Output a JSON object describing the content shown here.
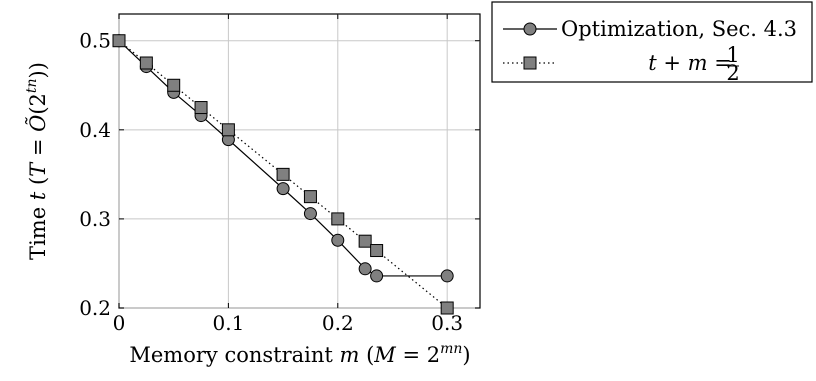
{
  "chart_data": {
    "type": "line",
    "xlabel": "Memory constraint m (M = 2^mn)",
    "ylabel": "Time t (T = Õ(2^tn))",
    "xlim": [
      0,
      0.33
    ],
    "ylim": [
      0.2,
      0.53
    ],
    "xticks": [
      "0",
      "0.1",
      "0.2",
      "0.3"
    ],
    "yticks": [
      "0.2",
      "0.3",
      "0.4",
      "0.5"
    ],
    "grid": true,
    "legend_position": "top-right-outside",
    "series": [
      {
        "name": "Optimization, Sec. 4.3",
        "marker": "circle",
        "line_style": "solid",
        "color": "#808080",
        "points": [
          [
            0,
            0.5
          ],
          [
            0.025,
            0.471
          ],
          [
            0.05,
            0.442
          ],
          [
            0.075,
            0.416
          ],
          [
            0.1,
            0.389
          ],
          [
            0.15,
            0.334
          ],
          [
            0.175,
            0.306
          ],
          [
            0.2,
            0.276
          ],
          [
            0.225,
            0.244
          ],
          [
            0.2355,
            0.236
          ],
          [
            0.3,
            0.236
          ]
        ]
      },
      {
        "name": "t + m = 1/2",
        "marker": "square",
        "line_style": "dotted",
        "color": "#808080",
        "points": [
          [
            0,
            0.5
          ],
          [
            0.025,
            0.475
          ],
          [
            0.05,
            0.45
          ],
          [
            0.075,
            0.425
          ],
          [
            0.1,
            0.4
          ],
          [
            0.15,
            0.35
          ],
          [
            0.175,
            0.325
          ],
          [
            0.2,
            0.3
          ],
          [
            0.225,
            0.275
          ],
          [
            0.2355,
            0.2645
          ],
          [
            0.3,
            0.2
          ]
        ]
      }
    ]
  }
}
